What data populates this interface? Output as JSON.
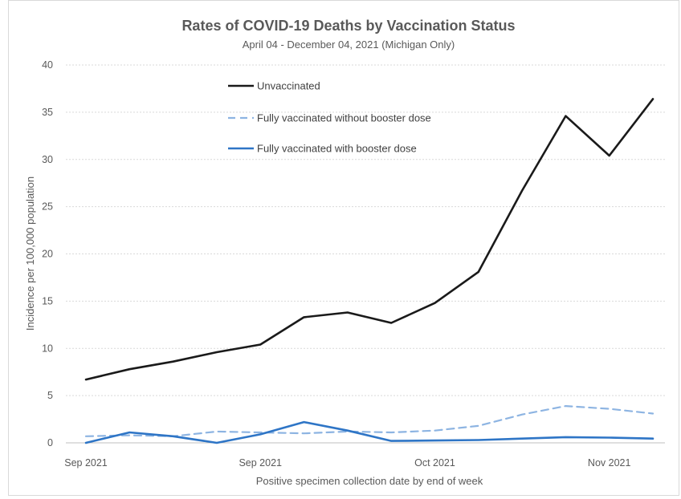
{
  "chart_data": {
    "type": "line",
    "title": "Rates of COVID-19 Deaths by Vaccination Status",
    "subtitle": "April 04 - December 04, 2021 (Michigan Only)",
    "xlabel": "Positive specimen collection date by end of week",
    "ylabel": "Incidence per 100,000 population",
    "ylim": [
      0,
      40
    ],
    "yticks": [
      0,
      5,
      10,
      15,
      20,
      25,
      30,
      35,
      40
    ],
    "xtick_labels": [
      {
        "label": "Sep 2021",
        "week": 0
      },
      {
        "label": "Sep 2021",
        "week": 4
      },
      {
        "label": "Oct 2021",
        "week": 8
      },
      {
        "label": "Nov 2021",
        "week": 12
      }
    ],
    "grid": true,
    "legend_position": "top-left-inside",
    "x": [
      0,
      1,
      2,
      3,
      4,
      5,
      6,
      7,
      8,
      9,
      10,
      11,
      12,
      13
    ],
    "series": [
      {
        "name": "Unvaccinated",
        "color": "#1a1a1a",
        "dash": "solid",
        "values": [
          6.7,
          7.8,
          8.6,
          9.6,
          10.4,
          13.3,
          13.8,
          12.7,
          14.8,
          18.1,
          26.7,
          34.6,
          30.4,
          36.4
        ]
      },
      {
        "name": "Fully vaccinated without booster dose",
        "color": "#8db4e2",
        "dash": "dashed",
        "values": [
          0.7,
          0.8,
          0.7,
          1.2,
          1.1,
          1.0,
          1.2,
          1.1,
          1.3,
          1.8,
          3.0,
          3.9,
          3.6,
          3.1
        ]
      },
      {
        "name": "Fully vaccinated with booster dose",
        "color": "#2e75c6",
        "dash": "solid",
        "values": [
          0.0,
          1.1,
          0.7,
          0.0,
          0.9,
          2.2,
          1.3,
          0.2,
          0.25,
          0.3,
          0.45,
          0.6,
          0.55,
          0.45
        ]
      }
    ]
  }
}
